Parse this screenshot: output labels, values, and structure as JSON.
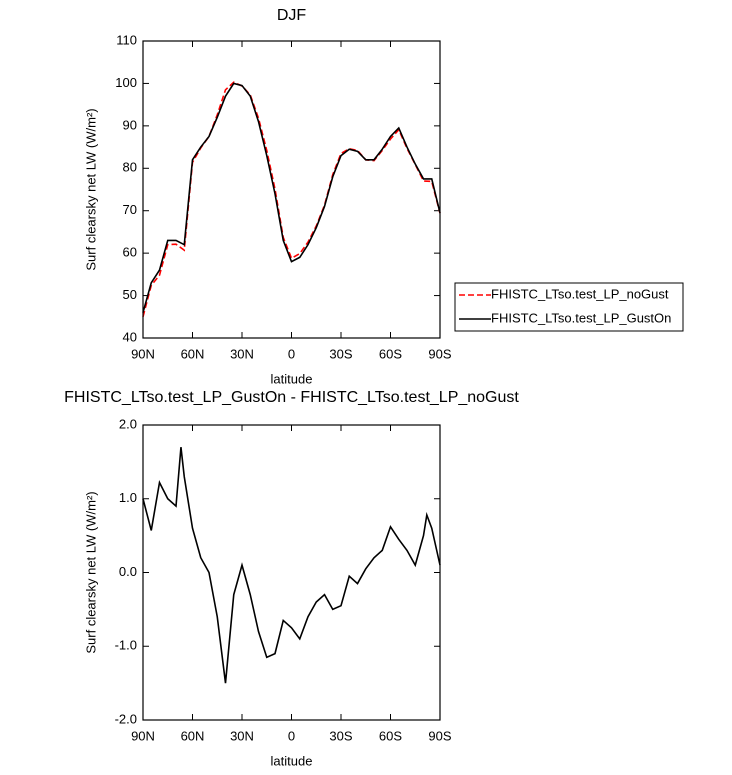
{
  "chart_data": [
    {
      "type": "line",
      "title": "DJF",
      "xlabel": "latitude",
      "ylabel": "Surf clearsky net LW (W/m²)",
      "x": [
        90,
        85,
        80,
        75,
        70,
        65,
        60,
        55,
        50,
        45,
        40,
        35,
        30,
        25,
        20,
        15,
        10,
        5,
        0,
        -5,
        -10,
        -15,
        -20,
        -25,
        -30,
        -35,
        -40,
        -45,
        -50,
        -55,
        -60,
        -65,
        -70,
        -75,
        -80,
        -85,
        -90
      ],
      "series": [
        {
          "name": "FHISTC_LTso.test_LP_noGust",
          "color": "#ff0000",
          "style": "dashed",
          "values": [
            45,
            52.4,
            54.8,
            62,
            62.1,
            60.7,
            81.4,
            84.8,
            87.5,
            92.6,
            98.5,
            100.3,
            99.4,
            97.3,
            91.8,
            84.2,
            75.1,
            63.7,
            58.8,
            59.9,
            62.6,
            66.4,
            71.3,
            78.5,
            83.5,
            84.6,
            84.2,
            82,
            81.8,
            84.2,
            86.9,
            89.1,
            84.7,
            80.9,
            77,
            76.9,
            69.4
          ]
        },
        {
          "name": "FHISTC_LTso.test_LP_GustOn",
          "color": "#000000",
          "style": "solid",
          "values": [
            46,
            53,
            56,
            63,
            63,
            62,
            82,
            85,
            87.5,
            92,
            97,
            100,
            99.5,
            97,
            91,
            83,
            74,
            63,
            58,
            59,
            62,
            66,
            71,
            78,
            83,
            84.5,
            84,
            82,
            82,
            84.5,
            87.5,
            89.5,
            85,
            81,
            77.5,
            77.5,
            69.5
          ]
        }
      ],
      "xlim": [
        90,
        -90
      ],
      "xticks": [
        {
          "value": 90,
          "label": "90N"
        },
        {
          "value": 60,
          "label": "60N"
        },
        {
          "value": 30,
          "label": "30N"
        },
        0,
        {
          "value": -30,
          "label": "30S"
        },
        {
          "value": -60,
          "label": "60S"
        },
        {
          "value": -90,
          "label": "90S"
        }
      ],
      "ylim": [
        40,
        110
      ],
      "yticks": [
        40,
        50,
        60,
        70,
        80,
        90,
        100,
        110
      ],
      "legend": "outside-right"
    },
    {
      "type": "line",
      "title": "FHISTC_LTso.test_LP_GustOn - FHISTC_LTso.test_LP_noGust",
      "xlabel": "latitude",
      "ylabel": "Surf clearsky net LW (W/m²)",
      "x": [
        90,
        85,
        80,
        75,
        70,
        67,
        65,
        60,
        55,
        50,
        45,
        40,
        35,
        30,
        25,
        20,
        15,
        10,
        5,
        0,
        -5,
        -10,
        -15,
        -20,
        -25,
        -30,
        -35,
        -40,
        -45,
        -50,
        -55,
        -60,
        -65,
        -70,
        -75,
        -80,
        -82,
        -85,
        -90
      ],
      "series": [
        {
          "color": "#000000",
          "style": "solid",
          "values": [
            1.0,
            0.57,
            1.22,
            1.0,
            0.9,
            1.7,
            1.3,
            0.6,
            0.2,
            0.0,
            -0.6,
            -1.5,
            -0.3,
            0.1,
            -0.3,
            -0.8,
            -1.15,
            -1.1,
            -0.65,
            -0.75,
            -0.9,
            -0.6,
            -0.4,
            -0.3,
            -0.5,
            -0.45,
            -0.05,
            -0.15,
            0.05,
            0.2,
            0.3,
            0.62,
            0.45,
            0.3,
            0.1,
            0.5,
            0.78,
            0.6,
            0.1
          ]
        }
      ],
      "xlim": [
        90,
        -90
      ],
      "xticks": [
        {
          "value": 90,
          "label": "90N"
        },
        {
          "value": 60,
          "label": "60N"
        },
        {
          "value": 30,
          "label": "30N"
        },
        0,
        {
          "value": -30,
          "label": "30S"
        },
        {
          "value": -60,
          "label": "60S"
        },
        {
          "value": -90,
          "label": "90S"
        }
      ],
      "ylim": [
        -2,
        2
      ],
      "yticks": [
        {
          "value": -2,
          "label": "-2.0"
        },
        {
          "value": -1,
          "label": "-1.0"
        },
        {
          "value": 0,
          "label": "0.0"
        },
        {
          "value": 1,
          "label": "1.0"
        },
        {
          "value": 2,
          "label": "2.0"
        }
      ]
    }
  ]
}
